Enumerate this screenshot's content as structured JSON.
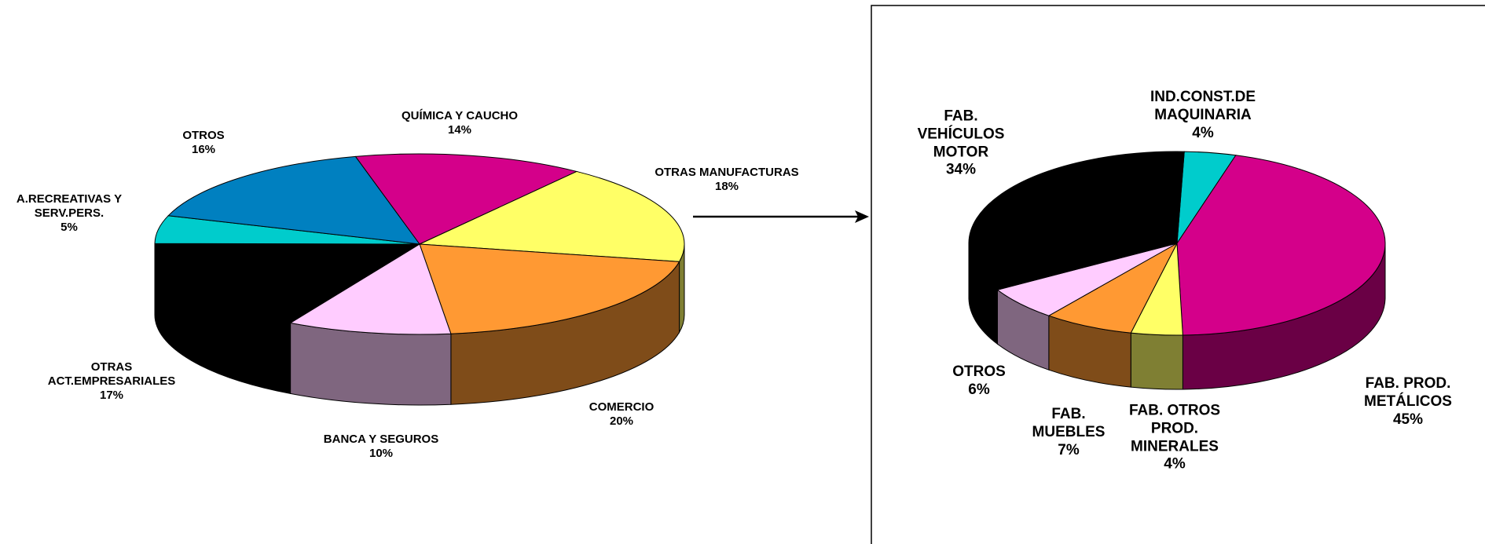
{
  "chart_data": [
    {
      "type": "pie",
      "categories": [
        "QUÍMICA Y CAUCHO",
        "OTRAS MANUFACTURAS",
        "COMERCIO",
        "BANCA Y SEGUROS",
        "OTRAS\nACT.EMPRESARIALES",
        "A.RECREATIVAS Y\nSERV.PERS.",
        "OTROS"
      ],
      "values": [
        14,
        18,
        20,
        10,
        17,
        5,
        16
      ],
      "value_labels": [
        "14%",
        "18%",
        "20%",
        "10%",
        "17%",
        "5%",
        "16%"
      ],
      "colors": [
        "#d4008a",
        "#ffff66",
        "#ff9933",
        "#ffccff",
        "#000000",
        "#00cccc",
        "#0080c0"
      ]
    },
    {
      "type": "pie",
      "categories": [
        "IND.CONST.DE\nMAQUINARIA",
        "FAB. PROD.\nMETÁLICOS",
        "FAB. OTROS\nPROD.\nMINERALES",
        "FAB.\nMUEBLES",
        "OTROS",
        "FAB.\nVEHÍCULOS\nMOTOR"
      ],
      "values": [
        4,
        45,
        4,
        7,
        6,
        34
      ],
      "value_labels": [
        "4%",
        "45%",
        "4%",
        "7%",
        "6%",
        "34%"
      ],
      "colors": [
        "#00cccc",
        "#d4008a",
        "#ffff66",
        "#ff9933",
        "#ffccff",
        "#000000"
      ]
    }
  ]
}
